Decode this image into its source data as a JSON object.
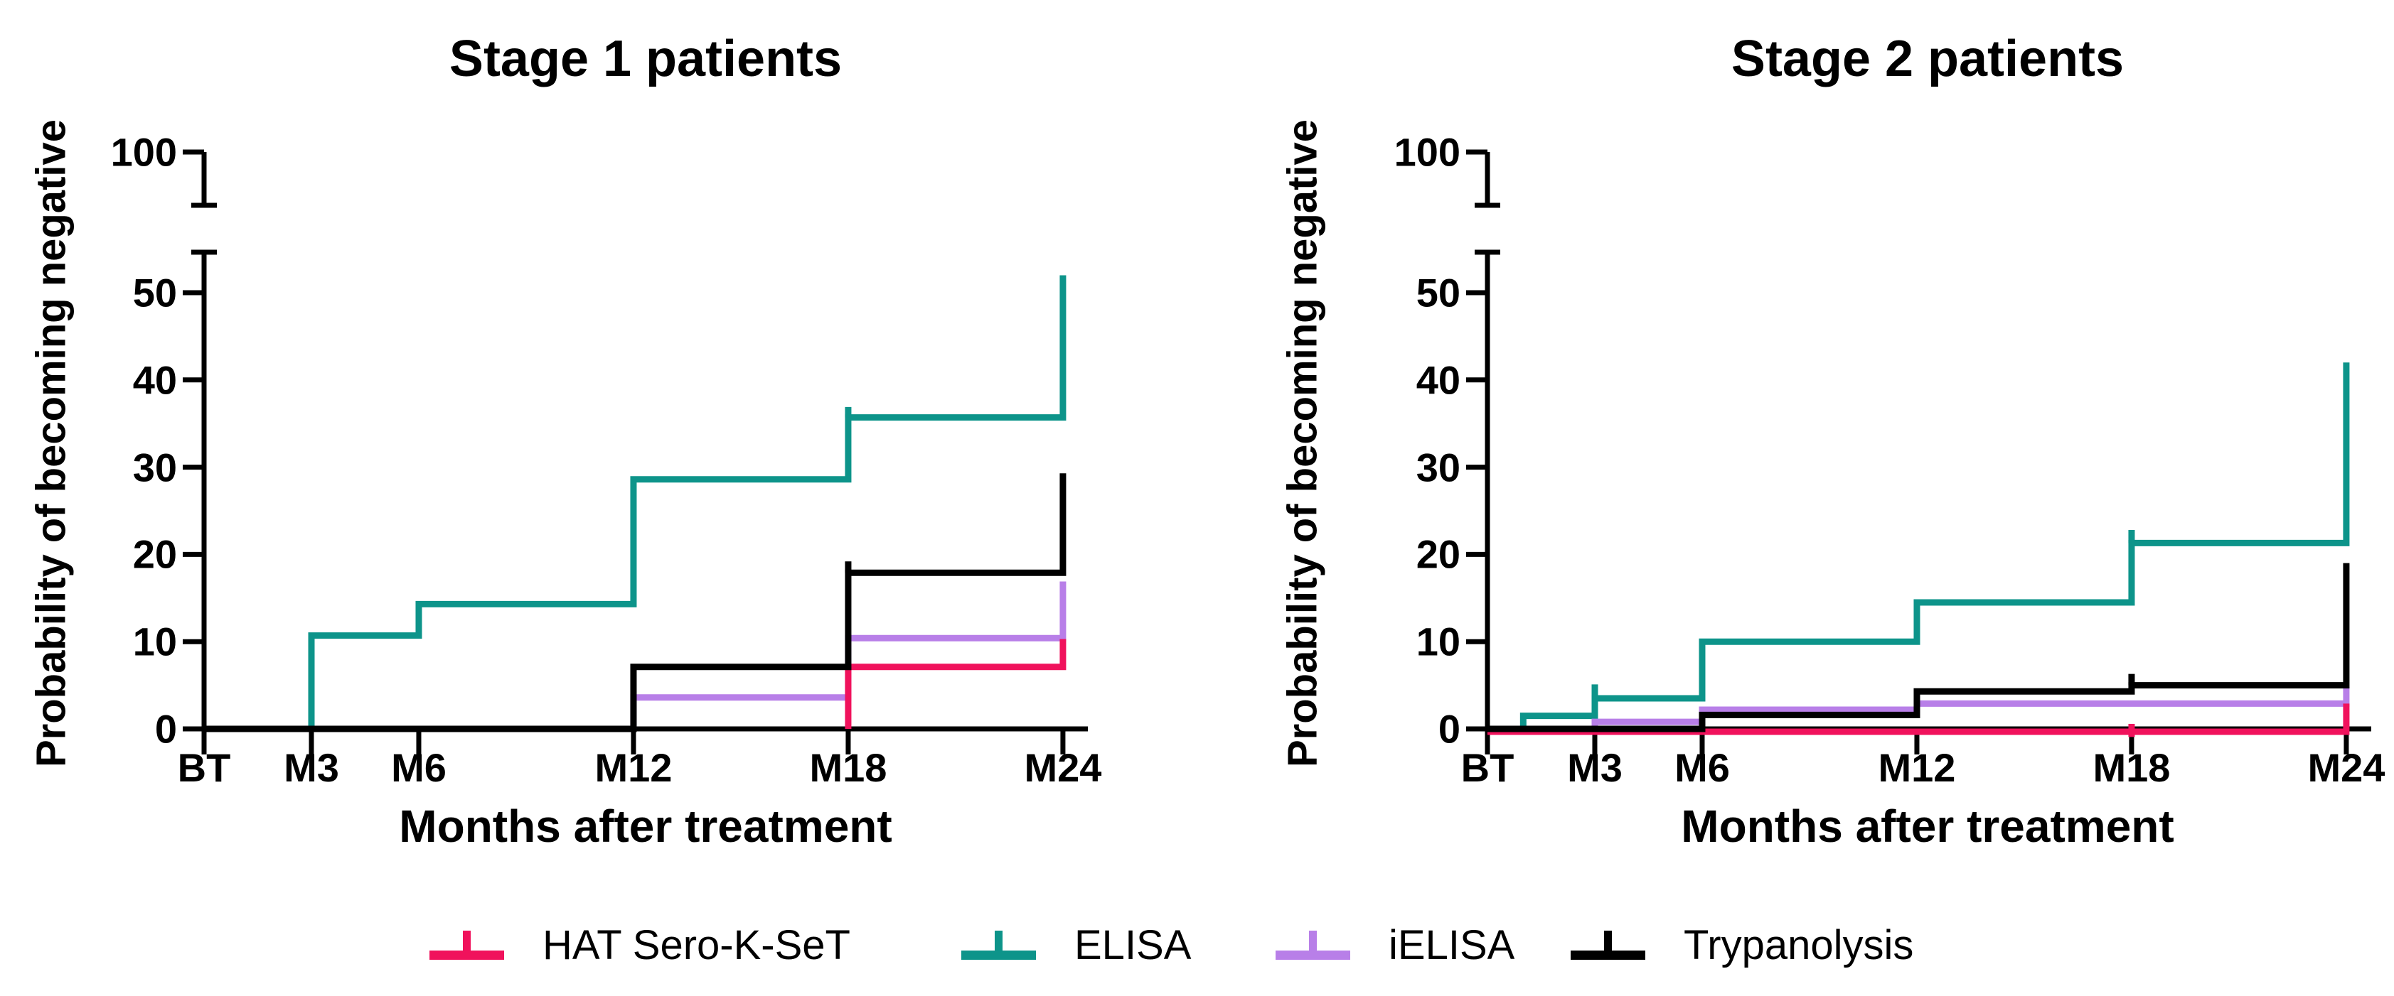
{
  "figure": {
    "background": "#ffffff"
  },
  "axes": {
    "y_label": "Probability of becoming negative",
    "x_label": "Months after treatment",
    "y_ticks": [
      0,
      10,
      20,
      30,
      40,
      50
    ],
    "y_break_label": "100",
    "x_ticks": [
      {
        "month": 0,
        "label": "BT"
      },
      {
        "month": 3,
        "label": "M3"
      },
      {
        "month": 6,
        "label": "M6"
      },
      {
        "month": 12,
        "label": "M12"
      },
      {
        "month": 18,
        "label": "M18"
      },
      {
        "month": 24,
        "label": "M24"
      }
    ]
  },
  "legend": [
    {
      "label": "HAT Sero-K-SeT",
      "color": "#F0125C"
    },
    {
      "label": "ELISA",
      "color": "#0D948A"
    },
    {
      "label": "iELISA",
      "color": "#B87FE8"
    },
    {
      "label": "Trypanolysis",
      "color": "#000000"
    }
  ],
  "chart_data": [
    {
      "type": "line",
      "subtype": "kaplan-meier-step",
      "title": "Stage 1 patients",
      "xlabel": "Months after treatment",
      "ylabel": "Probability of becoming negative",
      "x_tick_labels": [
        "BT",
        "M3",
        "M6",
        "M12",
        "M18",
        "M24"
      ],
      "xlim_months": [
        0,
        24
      ],
      "ylim": [
        0,
        55
      ],
      "y_axis_break_top": 100,
      "grid": false,
      "series": [
        {
          "name": "HAT Sero-K-SeT",
          "color": "#F0125C",
          "start": [
            18,
            0
          ],
          "steps": [
            [
              18,
              7.1
            ],
            [
              24,
              10.3
            ]
          ],
          "censor_ticks": []
        },
        {
          "name": "ELISA",
          "color": "#0D948A",
          "start": [
            0,
            0
          ],
          "steps": [
            [
              3,
              10.7
            ],
            [
              6,
              14.3
            ],
            [
              12,
              28.6
            ],
            [
              18,
              35.7
            ],
            [
              24,
              52
            ]
          ],
          "censor_ticks": [
            {
              "month": 18,
              "from": 35.7,
              "to": 36.9
            }
          ]
        },
        {
          "name": "iELISA",
          "color": "#B87FE8",
          "start": [
            12,
            0
          ],
          "steps": [
            [
              12,
              3.6
            ],
            [
              18,
              10.4
            ],
            [
              24,
              16.9
            ]
          ],
          "censor_ticks": []
        },
        {
          "name": "Trypanolysis",
          "color": "#000000",
          "start": [
            0,
            0
          ],
          "steps": [
            [
              12,
              7.1
            ],
            [
              18,
              17.9
            ],
            [
              24,
              29.3
            ]
          ],
          "censor_ticks": [
            {
              "month": 18,
              "from": 17.9,
              "to": 19.2
            }
          ]
        }
      ]
    },
    {
      "type": "line",
      "subtype": "kaplan-meier-step",
      "title": "Stage 2 patients",
      "xlabel": "Months after treatment",
      "ylabel": "Probability of becoming negative",
      "x_tick_labels": [
        "BT",
        "M3",
        "M6",
        "M12",
        "M18",
        "M24"
      ],
      "xlim_months": [
        0,
        24
      ],
      "ylim": [
        0,
        55
      ],
      "y_axis_break_top": 100,
      "grid": false,
      "series": [
        {
          "name": "HAT Sero-K-SeT",
          "color": "#F0125C",
          "start": [
            0,
            0
          ],
          "steps": [
            [
              24,
              2.9
            ]
          ],
          "censor_ticks": [
            {
              "month": 18,
              "from": -0.6,
              "to": 0.9
            }
          ]
        },
        {
          "name": "ELISA",
          "color": "#0D948A",
          "start": [
            0,
            0
          ],
          "steps": [
            [
              1,
              1.5
            ],
            [
              3,
              3.5
            ],
            [
              6,
              10
            ],
            [
              12,
              14.5
            ],
            [
              18,
              21.3
            ],
            [
              24,
              42
            ]
          ],
          "censor_ticks": [
            {
              "month": 3,
              "from": 3.5,
              "to": 5.1
            },
            {
              "month": 18,
              "from": 21.3,
              "to": 22.8
            }
          ]
        },
        {
          "name": "iELISA",
          "color": "#B87FE8",
          "start": [
            3,
            0
          ],
          "steps": [
            [
              3,
              0.8
            ],
            [
              6,
              2.2
            ],
            [
              12,
              2.9
            ],
            [
              24,
              4.8
            ]
          ],
          "censor_ticks": []
        },
        {
          "name": "Trypanolysis",
          "color": "#000000",
          "start": [
            0,
            0
          ],
          "steps": [
            [
              6,
              1.6
            ],
            [
              12,
              4.3
            ],
            [
              18,
              5.0
            ],
            [
              24,
              19
            ]
          ],
          "censor_ticks": [
            {
              "month": 18,
              "from": 5.0,
              "to": 6.3
            }
          ]
        }
      ]
    }
  ]
}
